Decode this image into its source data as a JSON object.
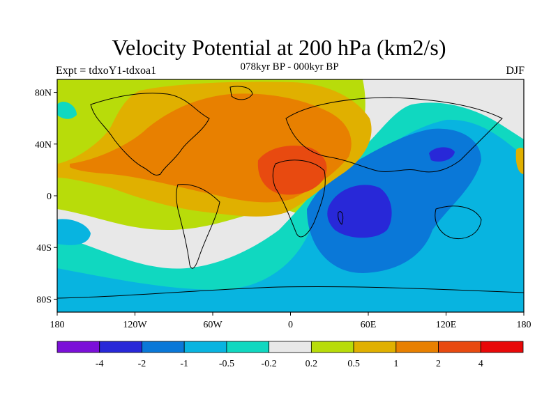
{
  "title": "Velocity Potential at 200 hPa (km2/s)",
  "subtitle": "078kyr BP - 000kyr BP",
  "left_label": "Expt = tdxoY1-tdxoa1",
  "right_label": "DJF",
  "lat_labels": [
    "80N",
    "40N",
    "0",
    "40S",
    "80S"
  ],
  "lat_values": [
    80,
    40,
    0,
    -40,
    -80
  ],
  "lon_labels": [
    "180",
    "120W",
    "60W",
    "0",
    "60E",
    "120E",
    "180"
  ],
  "lon_values": [
    -180,
    -120,
    -60,
    0,
    60,
    120,
    180
  ],
  "colorbar": {
    "colors": [
      "#7b10d8",
      "#2828d8",
      "#0a78d8",
      "#08b4e0",
      "#10d8c0",
      "#e8e8e8",
      "#b8dc0a",
      "#e0b000",
      "#e88000",
      "#e84a10",
      "#e80808"
    ],
    "labels": [
      "-4",
      "-2",
      "-1",
      "-0.5",
      "-0.2",
      "0.2",
      "0.5",
      "1",
      "2",
      "4"
    ]
  }
}
